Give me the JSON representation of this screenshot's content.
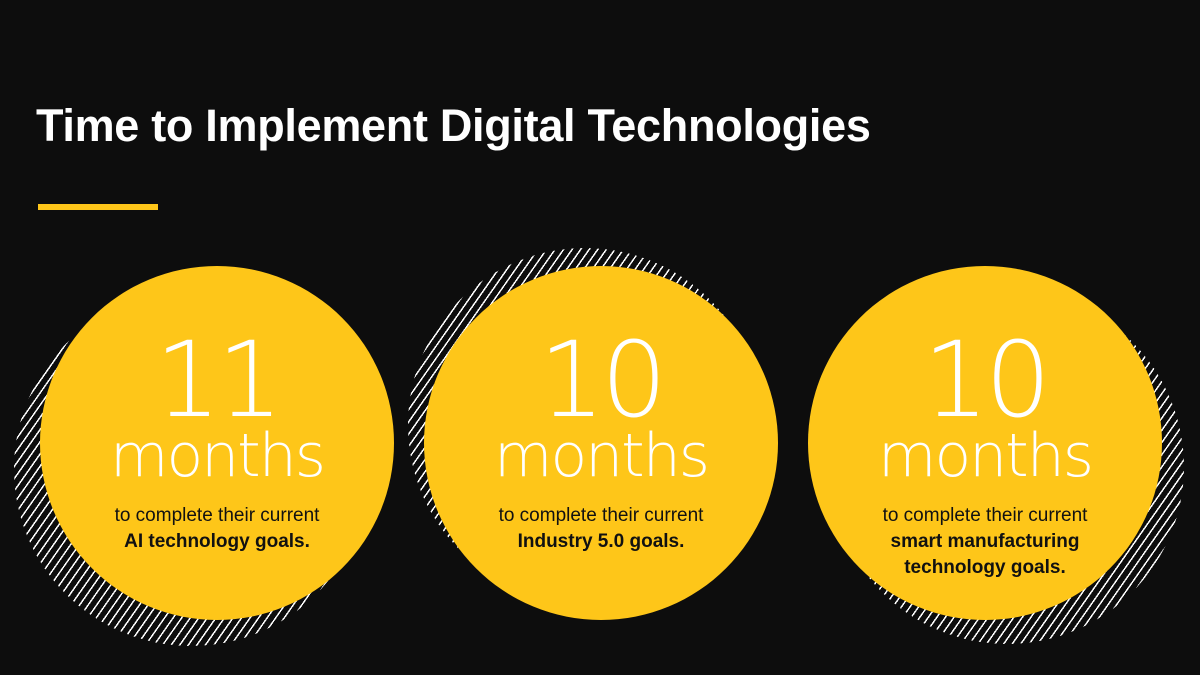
{
  "title": "Time to Implement Digital Technologies",
  "colors": {
    "accent": "#fec619",
    "background": "#0d0d0d"
  },
  "stats": [
    {
      "value": "11",
      "unit": "months",
      "text": "to complete their current",
      "emphasis": "AI technology goals."
    },
    {
      "value": "10",
      "unit": "months",
      "text": "to complete their current",
      "emphasis": "Industry 5.0 goals."
    },
    {
      "value": "10",
      "unit": "months",
      "text": "to complete their current",
      "emphasis": "smart manufacturing technology goals."
    }
  ]
}
